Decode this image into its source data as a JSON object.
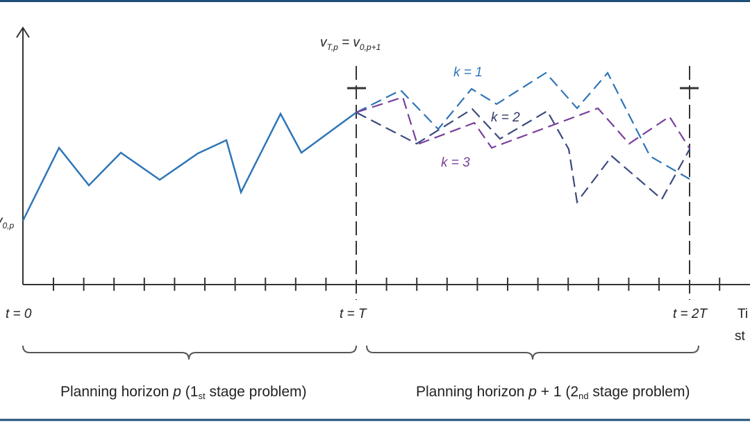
{
  "colors": {
    "frame": "#1f4e79",
    "axis": "#333333",
    "history": "#2e75b6",
    "scenario_k1": "#2e75b6",
    "scenario_k2": "#3a4a7e",
    "scenario_k3": "#7a3f9d"
  },
  "labels": {
    "v_start": "v",
    "v_start_sub": "0,p",
    "v_link_main": "v",
    "v_link_sub1": "T,p",
    "v_link_eq": " = v",
    "v_link_sub2": "0,p+1",
    "t0": "t = 0",
    "tT": "t = T",
    "t2T": "t = 2T",
    "axis_x_line1": "Ti",
    "axis_x_line2": "st",
    "k1": "k = 1",
    "k2": "k = 2",
    "k3": "k = 3",
    "horizon_p_a": "Planning horizon ",
    "horizon_p_b": "p",
    "horizon_p_c": " (1",
    "horizon_p_sub": "st",
    "horizon_p_d": " stage problem)",
    "horizon_p1_a": "Planning horizon ",
    "horizon_p1_b": "p",
    "horizon_p1_c": " + 1 (2",
    "horizon_p1_sub": "nd",
    "horizon_p1_d": " stage problem)"
  }
}
